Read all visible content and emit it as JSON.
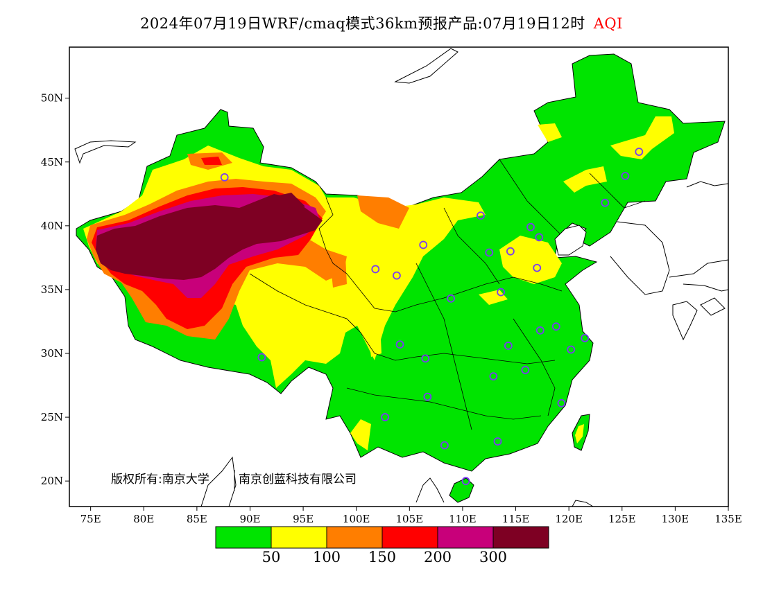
{
  "title": {
    "text": "2024年07月19日WRF/cmaq模式36km预报产品:07月19日12时",
    "product": "AQI",
    "product_color": "#ff0000"
  },
  "axes": {
    "lon_labels": [
      "75E",
      "80E",
      "85E",
      "90E",
      "95E",
      "100E",
      "105E",
      "110E",
      "115E",
      "120E",
      "125E",
      "130E",
      "135E"
    ],
    "lat_labels": [
      "50N",
      "45N",
      "40N",
      "35N",
      "30N",
      "25N",
      "20N"
    ],
    "lon_range": [
      73,
      135
    ],
    "lat_range": [
      18,
      54
    ]
  },
  "copyright": {
    "left": "版权所有:南京大学",
    "right": "南京创蓝科技有限公司"
  },
  "legend": {
    "colors": [
      "#00e400",
      "#ffff00",
      "#ff7e00",
      "#ff0000",
      "#c8007a",
      "#7e0023"
    ],
    "labels": [
      "50",
      "100",
      "150",
      "200",
      "300"
    ]
  },
  "stations": [
    {
      "lon": 87.6,
      "lat": 43.8
    },
    {
      "lon": 91.1,
      "lat": 29.7
    },
    {
      "lon": 101.8,
      "lat": 36.6
    },
    {
      "lon": 103.8,
      "lat": 36.1
    },
    {
      "lon": 106.3,
      "lat": 38.5
    },
    {
      "lon": 111.7,
      "lat": 40.8
    },
    {
      "lon": 112.5,
      "lat": 37.9
    },
    {
      "lon": 114.5,
      "lat": 38.0
    },
    {
      "lon": 116.4,
      "lat": 39.9
    },
    {
      "lon": 117.2,
      "lat": 39.1
    },
    {
      "lon": 117.0,
      "lat": 36.7
    },
    {
      "lon": 113.6,
      "lat": 34.8
    },
    {
      "lon": 108.9,
      "lat": 34.3
    },
    {
      "lon": 104.1,
      "lat": 30.7
    },
    {
      "lon": 106.5,
      "lat": 29.6
    },
    {
      "lon": 106.7,
      "lat": 26.6
    },
    {
      "lon": 102.7,
      "lat": 25.0
    },
    {
      "lon": 108.3,
      "lat": 22.8
    },
    {
      "lon": 113.3,
      "lat": 23.1
    },
    {
      "lon": 110.3,
      "lat": 20.0
    },
    {
      "lon": 112.9,
      "lat": 28.2
    },
    {
      "lon": 115.9,
      "lat": 28.7
    },
    {
      "lon": 114.3,
      "lat": 30.6
    },
    {
      "lon": 117.3,
      "lat": 31.8
    },
    {
      "lon": 118.8,
      "lat": 32.1
    },
    {
      "lon": 120.2,
      "lat": 30.3
    },
    {
      "lon": 121.5,
      "lat": 31.2
    },
    {
      "lon": 119.3,
      "lat": 26.1
    },
    {
      "lon": 123.4,
      "lat": 41.8
    },
    {
      "lon": 125.3,
      "lat": 43.9
    },
    {
      "lon": 126.6,
      "lat": 45.8
    }
  ]
}
